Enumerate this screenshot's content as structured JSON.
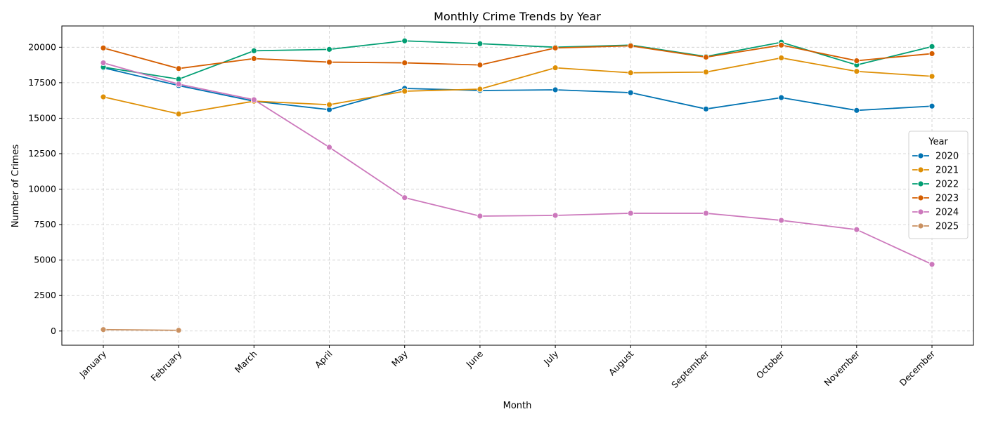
{
  "chart_data": {
    "type": "line",
    "title": "Monthly Crime Trends by Year",
    "xlabel": "Month",
    "ylabel": "Number of Crimes",
    "categories": [
      "January",
      "February",
      "March",
      "April",
      "May",
      "June",
      "July",
      "August",
      "September",
      "October",
      "November",
      "December"
    ],
    "ylim": [
      -1000,
      21500
    ],
    "yticks": [
      0,
      2500,
      5000,
      7500,
      10000,
      12500,
      15000,
      17500,
      20000
    ],
    "grid": true,
    "legend": {
      "title": "Year",
      "placement": "center-right"
    },
    "series": [
      {
        "name": "2020",
        "color": "#0173b2",
        "values": [
          18550,
          17300,
          16200,
          15600,
          17100,
          16950,
          17000,
          16800,
          15650,
          16450,
          15550,
          15850
        ]
      },
      {
        "name": "2021",
        "color": "#de8f05",
        "values": [
          16500,
          15300,
          16200,
          15950,
          16900,
          17050,
          18550,
          18200,
          18250,
          19250,
          18300,
          17950
        ]
      },
      {
        "name": "2022",
        "color": "#029e73",
        "values": [
          18600,
          17750,
          19750,
          19850,
          20450,
          20250,
          20000,
          20150,
          19350,
          20350,
          18750,
          20050
        ]
      },
      {
        "name": "2023",
        "color": "#d55e00",
        "values": [
          19950,
          18500,
          19200,
          18950,
          18900,
          18750,
          19950,
          20100,
          19300,
          20150,
          19050,
          19550
        ]
      },
      {
        "name": "2024",
        "color": "#cc78bc",
        "values": [
          18900,
          17400,
          16300,
          12950,
          9400,
          8100,
          8150,
          8300,
          8300,
          7800,
          7150,
          4700
        ]
      },
      {
        "name": "2025",
        "color": "#ca9161",
        "values": [
          100,
          50,
          null,
          null,
          null,
          null,
          null,
          null,
          null,
          null,
          null,
          null
        ]
      }
    ]
  }
}
